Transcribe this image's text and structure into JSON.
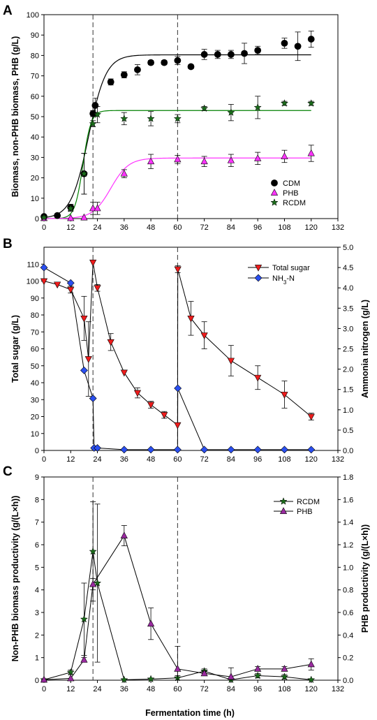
{
  "figure": {
    "panels": [
      "A",
      "B",
      "C"
    ],
    "x_axis_label": "Fermentation time (h)"
  },
  "colors": {
    "cdm": "#000000",
    "phb_a": "#ff33ff",
    "rcdm": "#1a6b1a",
    "fit_rcdm": "#008000",
    "fit_phb": "#ff33ff",
    "sugar": "#ee1c1c",
    "ammonia": "#2a4ff0",
    "phb_c": "#9a2aa0"
  },
  "chart_data": [
    {
      "panel": "A",
      "type": "scatter",
      "ylabel": "Biomass, non-PHB biomass, PHB (g/L)",
      "xlim": [
        0,
        132
      ],
      "ylim": [
        0,
        100
      ],
      "xticks": [
        0,
        12,
        24,
        36,
        48,
        60,
        72,
        84,
        96,
        108,
        120,
        132
      ],
      "yticks": [
        0,
        10,
        20,
        30,
        40,
        50,
        60,
        70,
        80,
        90,
        100
      ],
      "vlines": [
        22,
        60
      ],
      "legend": [
        "CDM",
        "PHB",
        "RCDM"
      ],
      "legend_position": "lower-right",
      "series": [
        {
          "name": "CDM",
          "marker": "circle",
          "x": [
            0,
            6,
            12,
            18,
            22,
            23,
            30,
            36,
            42,
            48,
            54,
            60,
            66,
            72,
            78,
            84,
            90,
            96,
            108,
            114,
            120
          ],
          "y": [
            1,
            1.5,
            5.5,
            22,
            51.5,
            55.5,
            67,
            70.5,
            73,
            76.5,
            76.5,
            77.5,
            74.5,
            80.5,
            80.5,
            80.5,
            81,
            82.5,
            86,
            84.5,
            88
          ],
          "err": [
            0.5,
            0.5,
            1.5,
            10,
            1.5,
            3.5,
            1.5,
            1.5,
            2.5,
            1,
            1,
            2,
            1,
            2.5,
            2,
            2,
            5,
            2,
            2.5,
            7,
            4
          ]
        },
        {
          "name": "PHB",
          "marker": "triangle",
          "x": [
            0,
            12,
            18,
            22,
            24,
            36,
            48,
            60,
            72,
            84,
            96,
            108,
            120
          ],
          "y": [
            0.2,
            0.2,
            0.5,
            5,
            5,
            22,
            28,
            29,
            28,
            28.5,
            29.5,
            30.5,
            32
          ],
          "err": [
            0.1,
            0.1,
            0.2,
            3,
            3,
            2,
            3.5,
            2,
            2.5,
            3,
            3,
            3,
            4
          ]
        },
        {
          "name": "RCDM",
          "marker": "star",
          "x": [
            0,
            12,
            18,
            22,
            24,
            36,
            48,
            60,
            72,
            84,
            96,
            108,
            120
          ],
          "y": [
            0.5,
            5,
            22,
            46.5,
            51,
            49,
            49,
            49,
            54,
            52,
            54.5,
            56.5,
            56.5
          ],
          "err": [
            0.3,
            1.5,
            10,
            1.5,
            4,
            3,
            3.5,
            2,
            1,
            4,
            5.5,
            1,
            1
          ]
        }
      ],
      "fit_curves": [
        {
          "name": "CDM fit",
          "model": "logistic",
          "K": 80.3,
          "r": 0.255,
          "x0": 20
        },
        {
          "name": "RCDM fit",
          "model": "logistic",
          "K": 53,
          "r": 0.55,
          "x0": 17.5
        },
        {
          "name": "PHB fit",
          "model": "logistic",
          "K": 29.7,
          "r": 0.25,
          "x0": 30
        }
      ]
    },
    {
      "panel": "B",
      "type": "line",
      "ylabel": "Total sugar (g/L)",
      "ylabel_right": "Ammonia nitrogen (g/L)",
      "xlim": [
        0,
        132
      ],
      "ylim": [
        0,
        120
      ],
      "ylim_right": [
        0,
        5
      ],
      "xticks": [
        0,
        12,
        24,
        36,
        48,
        60,
        72,
        84,
        96,
        108,
        120,
        132
      ],
      "yticks": [
        0,
        10,
        20,
        30,
        40,
        50,
        60,
        70,
        80,
        90,
        100,
        110
      ],
      "yticks_right": [
        "0.0",
        "0.5",
        "1.0",
        "1.5",
        "2.0",
        "2.5",
        "3.0",
        "3.5",
        "4.0",
        "4.5",
        "5.0"
      ],
      "vlines": [
        22,
        60
      ],
      "legend": [
        "Total sugar",
        "NH3-N"
      ],
      "legend_position": "top-right",
      "series": [
        {
          "name": "Total sugar",
          "marker": "triangle-down",
          "axis": "left",
          "x": [
            0,
            6,
            12,
            18,
            20,
            22,
            24,
            30,
            36,
            42,
            48,
            54,
            60,
            60.1,
            66,
            72,
            84,
            96,
            108,
            120
          ],
          "y": [
            100,
            98,
            95,
            78,
            54,
            111,
            96,
            64,
            46,
            34,
            27,
            21,
            15,
            107,
            78,
            68,
            53,
            43,
            33,
            20
          ],
          "err": [
            1,
            1,
            2,
            13,
            22,
            1,
            2,
            5,
            1,
            3,
            2,
            2,
            1,
            2,
            10,
            8,
            9,
            7,
            8,
            2
          ]
        },
        {
          "name": "NH3-N",
          "marker": "diamond",
          "axis": "right",
          "x": [
            0,
            12,
            18,
            22,
            22.5,
            24,
            36,
            48,
            60,
            60.1,
            72,
            84,
            96,
            108,
            120
          ],
          "y": [
            4.5,
            4.12,
            1.97,
            1.28,
            0.06,
            0.06,
            0.02,
            0.02,
            0.02,
            1.53,
            0.02,
            0.02,
            0.02,
            0.02,
            0.02
          ]
        }
      ]
    },
    {
      "panel": "C",
      "type": "line",
      "ylabel": "Non-PHB biomass productivity (g/(L×h))",
      "ylabel_right": "PHB productivity (g/(L×h))",
      "xlim": [
        0,
        132
      ],
      "ylim": [
        0,
        9
      ],
      "ylim_right": [
        0,
        1.8
      ],
      "xticks": [
        0,
        12,
        24,
        36,
        48,
        60,
        72,
        84,
        96,
        108,
        120,
        132
      ],
      "yticks": [
        0,
        1,
        2,
        3,
        4,
        5,
        6,
        7,
        8,
        9
      ],
      "yticks_right": [
        "0.0",
        "0.2",
        "0.4",
        "0.6",
        "0.8",
        "1.0",
        "1.2",
        "1.4",
        "1.6",
        "1.8"
      ],
      "vlines": [
        22,
        60
      ],
      "legend": [
        "RCDM",
        "PHB"
      ],
      "legend_position": "top-right",
      "series": [
        {
          "name": "RCDM",
          "marker": "star",
          "axis": "left",
          "x": [
            0,
            12,
            18,
            22,
            24,
            36,
            48,
            60,
            72,
            84,
            96,
            108,
            120
          ],
          "y": [
            0.02,
            0.35,
            2.7,
            5.7,
            4.3,
            0.02,
            0.05,
            0.1,
            0.4,
            0.02,
            0.2,
            0.15,
            0.02
          ],
          "err": [
            0.02,
            0.1,
            1.6,
            2.2,
            3.5,
            0.02,
            0.05,
            0.1,
            0.1,
            0.02,
            0.1,
            0.1,
            0.02
          ]
        },
        {
          "name": "PHB",
          "marker": "triangle",
          "axis": "right",
          "x": [
            0,
            12,
            18,
            22,
            36,
            48,
            60,
            72,
            84,
            96,
            108,
            120
          ],
          "y": [
            0.004,
            0.016,
            0.18,
            0.85,
            1.28,
            0.5,
            0.1,
            0.06,
            0.03,
            0.1,
            0.1,
            0.14
          ],
          "err": [
            0.004,
            0.01,
            0.02,
            0.05,
            0.09,
            0.14,
            0.2,
            0.02,
            0.08,
            0.02,
            0.02,
            0.05
          ]
        }
      ]
    }
  ]
}
